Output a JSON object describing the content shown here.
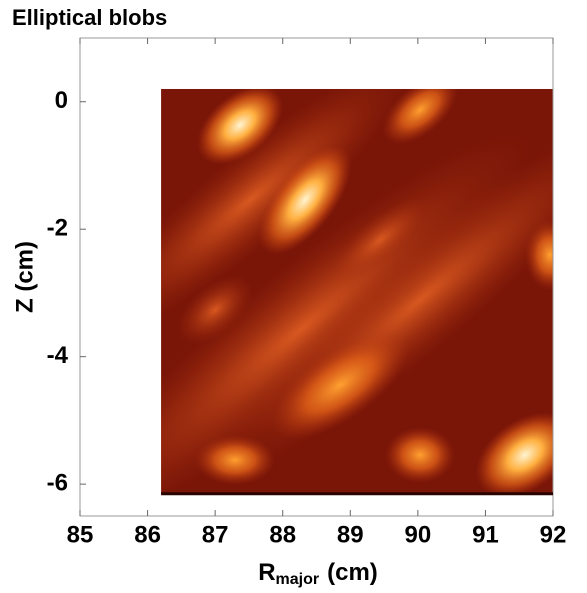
{
  "chart_data": {
    "type": "heatmap",
    "title": "Elliptical blobs",
    "xlabel": "R",
    "xlabel_sub": "major",
    "xlabel_unit": "(cm)",
    "ylabel": "Z (cm)",
    "xlim": [
      85,
      92
    ],
    "xticks": [
      85,
      86,
      87,
      88,
      89,
      90,
      91,
      92
    ],
    "ylim": [
      -6.5,
      1
    ],
    "yticks": [
      -6,
      -4,
      -2,
      0
    ],
    "image_extent": [
      86.2,
      92,
      -6.15,
      0.2
    ],
    "color": "#7a1608"
  }
}
